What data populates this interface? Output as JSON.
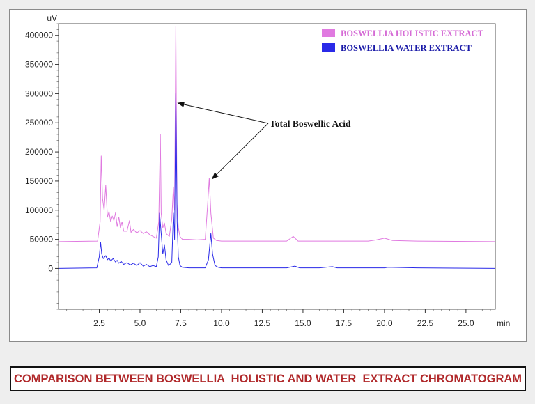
{
  "chart_data": {
    "type": "line",
    "title": "",
    "y_unit": "uV",
    "x_unit": "min",
    "xlim": [
      0,
      26.8
    ],
    "ylim": [
      -70000,
      420000
    ],
    "x_ticks": [
      2.5,
      5.0,
      7.5,
      10.0,
      12.5,
      15.0,
      17.5,
      20.0,
      22.5,
      25.0
    ],
    "x_tick_labels": [
      "2.5",
      "5.0",
      "7.5",
      "10.0",
      "12.5",
      "15.0",
      "17.5",
      "20.0",
      "22.5",
      "25.0"
    ],
    "y_ticks": [
      0,
      50000,
      100000,
      150000,
      200000,
      250000,
      300000,
      350000,
      400000
    ],
    "y_tick_labels": [
      "0",
      "50000",
      "100000",
      "150000",
      "200000",
      "250000",
      "300000",
      "350000",
      "400000"
    ],
    "grid": false,
    "legend_position": "top-right",
    "series": [
      {
        "name": "BOSWELLIA  HOLISTIC EXTRACT",
        "color": "#e07ae0",
        "baseline": 46000,
        "x": [
          0,
          2.4,
          2.55,
          2.62,
          2.7,
          2.8,
          2.9,
          3.0,
          3.1,
          3.2,
          3.3,
          3.4,
          3.5,
          3.6,
          3.7,
          3.8,
          3.9,
          4.0,
          4.2,
          4.35,
          4.45,
          4.6,
          4.8,
          5.0,
          5.2,
          5.4,
          5.6,
          5.8,
          6.0,
          6.15,
          6.25,
          6.3,
          6.4,
          6.5,
          6.6,
          6.8,
          6.95,
          7.05,
          7.12,
          7.2,
          7.27,
          7.35,
          7.45,
          7.6,
          8.0,
          8.5,
          9.0,
          9.15,
          9.25,
          9.35,
          9.5,
          9.7,
          10.0,
          12.0,
          14.0,
          14.4,
          14.7,
          16.0,
          17.0,
          19.0,
          19.5,
          20.0,
          20.5,
          22.0,
          26.8
        ],
        "y": [
          46000,
          47000,
          80000,
          193000,
          120000,
          100000,
          143000,
          88000,
          98000,
          80000,
          90000,
          82000,
          96000,
          72000,
          88000,
          70000,
          80000,
          64000,
          64000,
          82000,
          62000,
          67000,
          61000,
          65000,
          60000,
          63000,
          58000,
          55000,
          52000,
          80000,
          230000,
          95000,
          70000,
          78000,
          60000,
          55000,
          85000,
          140000,
          100000,
          415000,
          110000,
          70000,
          55000,
          50000,
          50000,
          49000,
          50000,
          110000,
          155000,
          95000,
          52000,
          48000,
          47000,
          47000,
          47000,
          55000,
          47000,
          47000,
          47000,
          47000,
          49000,
          52000,
          48000,
          47000,
          46000
        ]
      },
      {
        "name": "BOSWELLIA WATER EXTRACT",
        "color": "#2a2ae8",
        "baseline": 0,
        "x": [
          0,
          2.35,
          2.5,
          2.58,
          2.65,
          2.75,
          2.9,
          3.0,
          3.1,
          3.2,
          3.35,
          3.5,
          3.6,
          3.7,
          3.85,
          4.0,
          4.2,
          4.4,
          4.6,
          4.8,
          5.0,
          5.2,
          5.4,
          5.6,
          5.8,
          6.0,
          6.12,
          6.2,
          6.3,
          6.4,
          6.5,
          6.6,
          6.75,
          6.95,
          7.05,
          7.12,
          7.2,
          7.28,
          7.35,
          7.45,
          7.6,
          8.0,
          8.5,
          9.0,
          9.2,
          9.35,
          9.45,
          9.6,
          9.8,
          10.0,
          12.0,
          14.0,
          14.5,
          14.8,
          16.0,
          16.8,
          17.1,
          19.0,
          20.0,
          20.2,
          22.0,
          26.8
        ],
        "y": [
          0,
          1000,
          20000,
          45000,
          25000,
          17000,
          22000,
          15000,
          18000,
          13000,
          17000,
          11000,
          14000,
          9000,
          12000,
          7000,
          10000,
          6000,
          9000,
          5000,
          10000,
          4000,
          7000,
          3000,
          5000,
          3000,
          20000,
          95000,
          60000,
          25000,
          40000,
          15000,
          5000,
          10000,
          95000,
          50000,
          300000,
          80000,
          20000,
          5000,
          2000,
          1000,
          1000,
          1000,
          15000,
          60000,
          25000,
          5000,
          2000,
          1000,
          1000,
          1000,
          4000,
          1000,
          1000,
          3000,
          1000,
          1000,
          1000,
          2000,
          1000,
          0
        ]
      }
    ],
    "annotations": [
      {
        "text": "Total Boswellic Acid",
        "points_to": [
          [
            7.2,
            285000
          ],
          [
            9.3,
            155000
          ]
        ]
      }
    ]
  },
  "caption": "COMPARISON BETWEEN BOSWELLIA  HOLISTIC AND WATER  EXTRACT CHROMATOGRAM"
}
